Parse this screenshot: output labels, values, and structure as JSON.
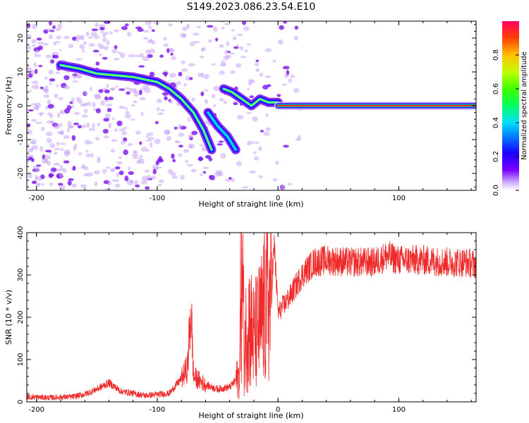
{
  "title": "S149.2023.086.23.54.E10",
  "colors": {
    "snr_line": "#ee2a2a",
    "axis": "#000000"
  },
  "colorbar": {
    "label": "Normalized spectral amplitude",
    "ticks": [
      "0.0",
      "0.2",
      "0.4",
      "0.6",
      "0.8"
    ],
    "tick_values": [
      0.0,
      0.2,
      0.4,
      0.6,
      0.8
    ],
    "range": [
      0,
      1
    ],
    "colormap": "hsv (violet-blue-cyan-green-yellow-orange-red)"
  },
  "chart_data": [
    {
      "type": "heatmap",
      "xlabel": "Height of straight line (km)",
      "ylabel": "Frequency (Hz)",
      "xlim": [
        -208,
        164
      ],
      "ylim": [
        -25,
        25
      ],
      "xticks": [
        -200,
        -100,
        0,
        100
      ],
      "xtick_labels": [
        "-200",
        "-100",
        "0",
        "100"
      ],
      "yticks": [
        -20,
        -10,
        0,
        10,
        20
      ],
      "ytick_labels": [
        "-20",
        "-10",
        "0",
        "10",
        "20"
      ],
      "ridges": [
        {
          "name": "main",
          "points": [
            [
              -180,
              12
            ],
            [
              -165,
              11
            ],
            [
              -150,
              9.5
            ],
            [
              -135,
              9
            ],
            [
              -120,
              8.5
            ],
            [
              -100,
              7
            ],
            [
              -90,
              5
            ],
            [
              -80,
              2
            ],
            [
              -70,
              -2
            ],
            [
              -62,
              -7
            ],
            [
              -55,
              -13
            ]
          ]
        },
        {
          "name": "secondary",
          "points": [
            [
              -45,
              5
            ],
            [
              -38,
              4
            ],
            [
              -30,
              2
            ],
            [
              -22,
              0
            ],
            [
              -15,
              2
            ],
            [
              -8,
              1
            ],
            [
              0,
              1
            ]
          ]
        },
        {
          "name": "branch",
          "points": [
            [
              -58,
              -2
            ],
            [
              -50,
              -6
            ],
            [
              -42,
              -9
            ],
            [
              -35,
              -13
            ]
          ]
        },
        {
          "name": "carrier",
          "points": [
            [
              0,
              0
            ],
            [
              50,
              0
            ],
            [
              100,
              0
            ],
            [
              164,
              0
            ]
          ]
        }
      ]
    },
    {
      "type": "line",
      "xlabel": "Height of straight line (km)",
      "ylabel": "SNR (10 * v/v)",
      "xlim": [
        -208,
        164
      ],
      "ylim": [
        0,
        400
      ],
      "xticks": [
        -200,
        -100,
        0,
        100
      ],
      "xtick_labels": [
        "-200",
        "-100",
        "0",
        "100"
      ],
      "yticks": [
        0,
        100,
        200,
        300,
        400
      ],
      "ytick_labels": [
        "0",
        "100",
        "200",
        "300",
        "400"
      ],
      "series": [
        {
          "x": [
            -208,
            -190,
            -170,
            -160,
            -150,
            -140,
            -130,
            -110,
            -90,
            -80,
            -75,
            -72,
            -70,
            -60,
            -50,
            -40,
            -32,
            -30,
            -28,
            -25,
            -20,
            -15,
            -10,
            -6,
            -3,
            0,
            10,
            20,
            30,
            40,
            60,
            80,
            90,
            100,
            120,
            140,
            155,
            164
          ],
          "y": [
            12,
            10,
            12,
            18,
            30,
            45,
            25,
            15,
            20,
            55,
            80,
            220,
            60,
            40,
            30,
            35,
            60,
            395,
            120,
            200,
            150,
            180,
            230,
            250,
            370,
            210,
            250,
            300,
            330,
            335,
            330,
            330,
            345,
            335,
            335,
            330,
            330,
            325
          ]
        }
      ]
    }
  ]
}
